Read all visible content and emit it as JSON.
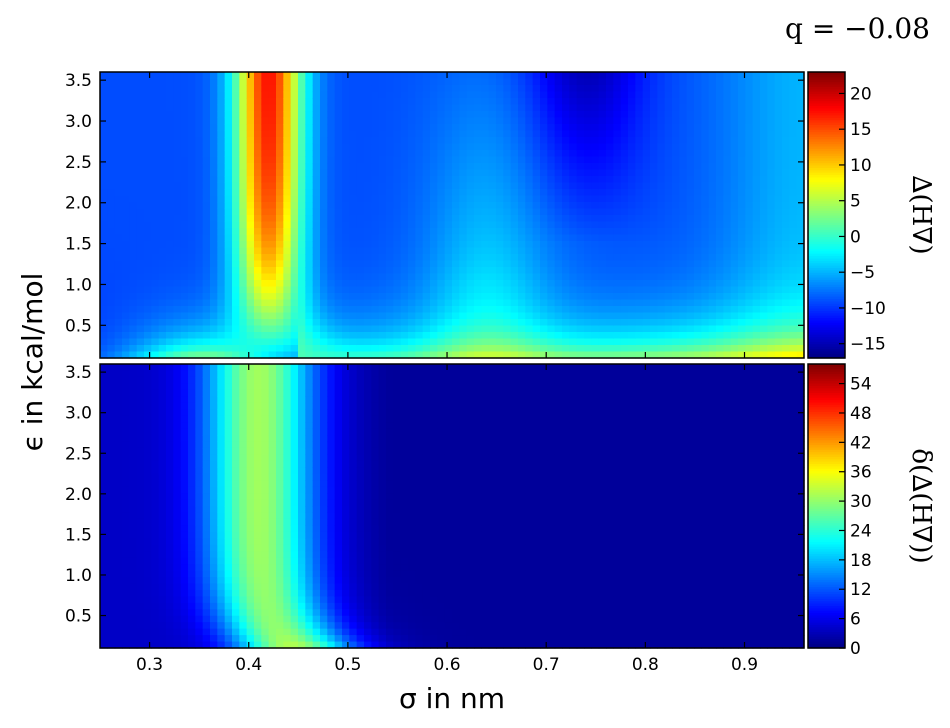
{
  "annotation": "q = −0.08",
  "chart_data": [
    {
      "type": "heatmap",
      "panel": "top",
      "field": "dH",
      "colormap": "jet",
      "xlim": [
        0.25,
        0.96
      ],
      "ylim": [
        0.1,
        3.6
      ],
      "xticks": [],
      "yticks": [
        "0.5",
        "1.0",
        "1.5",
        "2.0",
        "2.5",
        "3.0",
        "3.5"
      ],
      "colorbar": {
        "label": "∆(H∇)",
        "range": [
          -17,
          23
        ],
        "ticks": [
          "−15",
          "−10",
          "−5",
          "0",
          "5",
          "10",
          "15",
          "20"
        ]
      }
    },
    {
      "type": "heatmap",
      "panel": "bottom",
      "field": "sdH",
      "colormap": "jet",
      "xlim": [
        0.25,
        0.96
      ],
      "ylim": [
        0.1,
        3.6
      ],
      "xticks": [
        "0.3",
        "0.4",
        "0.5",
        "0.6",
        "0.7",
        "0.8",
        "0.9"
      ],
      "yticks": [
        "0.5",
        "1.0",
        "1.5",
        "2.0",
        "2.5",
        "3.0",
        "3.5"
      ],
      "xlabel": "σ in nm",
      "colorbar": {
        "label": "δ(∆(H∇))",
        "range": [
          0,
          58
        ],
        "ticks": [
          "0",
          "6",
          "12",
          "18",
          "24",
          "30",
          "36",
          "42",
          "48",
          "54"
        ]
      }
    }
  ],
  "shared_ylabel": "ϵ in kcal/mol"
}
